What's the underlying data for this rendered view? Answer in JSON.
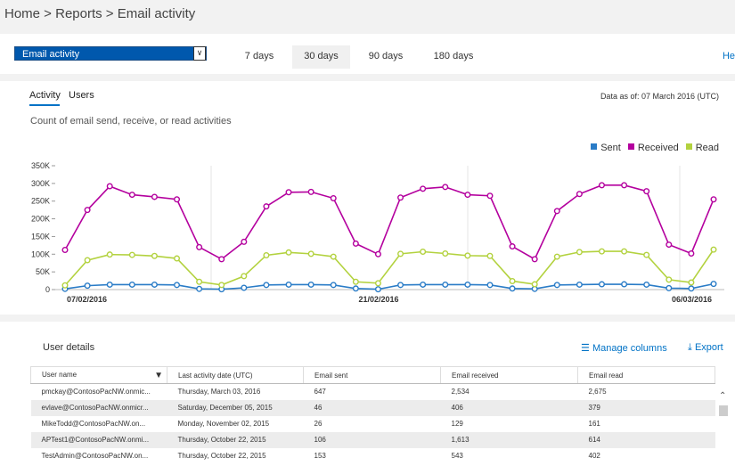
{
  "breadcrumb": "Home > Reports > Email activity",
  "report_selector": {
    "value": "Email activity"
  },
  "period_tabs": [
    "7 days",
    "30 days",
    "90 days",
    "180 days"
  ],
  "active_period": "30 days",
  "help_label": "He",
  "activity_tabs": [
    "Activity",
    "Users"
  ],
  "data_as_of": "Data as of: 07 March 2016 (UTC)",
  "chart_description": "Count of email send, receive, or read activities",
  "colors": {
    "sent": "#2a7cc7",
    "received": "#b4009e",
    "read": "#b3d23f",
    "accent": "#0072c6"
  },
  "chart_data": {
    "type": "line",
    "x_tick_labels": [
      "07/02/2016",
      "21/02/2016",
      "06/03/2016"
    ],
    "y_tick_labels": [
      "0",
      "50K",
      "100K",
      "150K",
      "200K",
      "250K",
      "300K",
      "350K"
    ],
    "ylim": [
      0,
      350000
    ],
    "legend": [
      "Sent",
      "Received",
      "Read"
    ],
    "legend_position": "top-right",
    "series": [
      {
        "name": "Sent",
        "values": [
          2000,
          11000,
          14000,
          14000,
          14000,
          13000,
          2000,
          1000,
          5000,
          13000,
          14000,
          14000,
          13000,
          3000,
          1000,
          13000,
          14000,
          14000,
          14000,
          13000,
          3000,
          2000,
          13000,
          14000,
          15000,
          15000,
          14000,
          4000,
          3000,
          16000
        ]
      },
      {
        "name": "Received",
        "values": [
          112000,
          225000,
          292000,
          268000,
          262000,
          255000,
          120000,
          86000,
          135000,
          235000,
          275000,
          276000,
          258000,
          130000,
          100000,
          260000,
          285000,
          290000,
          268000,
          265000,
          122000,
          86000,
          222000,
          270000,
          295000,
          295000,
          278000,
          127000,
          102000,
          255000
        ]
      },
      {
        "name": "Read",
        "values": [
          12000,
          83000,
          99000,
          98000,
          95000,
          88000,
          22000,
          13000,
          38000,
          97000,
          105000,
          101000,
          93000,
          22000,
          18000,
          101000,
          107000,
          102000,
          96000,
          95000,
          24000,
          15000,
          93000,
          106000,
          108000,
          108000,
          98000,
          28000,
          20000,
          113000
        ]
      }
    ]
  },
  "user_details": {
    "title": "User details",
    "manage_columns": "Manage columns",
    "export": "Export",
    "columns": [
      "User name",
      "Last activity date (UTC)",
      "Email sent",
      "Email received",
      "Email read"
    ],
    "rows": [
      [
        "pmckay@ContosoPacNW.onmic...",
        "Thursday, March 03, 2016",
        "647",
        "2,534",
        "2,675"
      ],
      [
        "evlave@ContosoPacNW.onmicr...",
        "Saturday, December 05, 2015",
        "46",
        "406",
        "379"
      ],
      [
        "MikeTodd@ContosoPacNW.on...",
        "Monday, November 02, 2015",
        "26",
        "129",
        "161"
      ],
      [
        "APTest1@ContosoPacNW.onmi...",
        "Thursday, October 22, 2015",
        "106",
        "1,613",
        "614"
      ],
      [
        "TestAdmin@ContosoPacNW.on...",
        "Thursday, October 22, 2015",
        "153",
        "543",
        "402"
      ]
    ]
  }
}
